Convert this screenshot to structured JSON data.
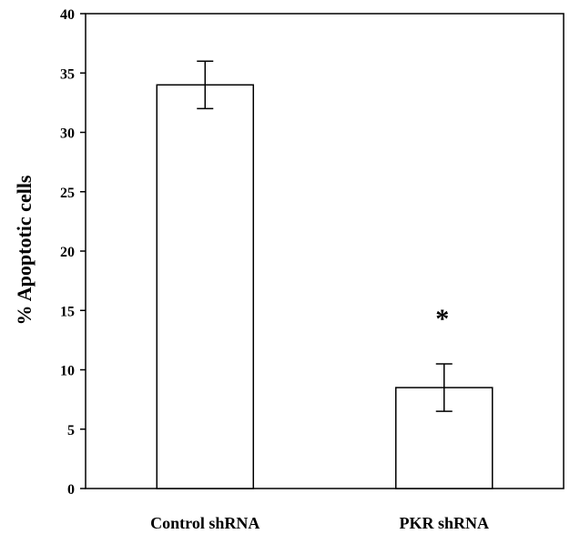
{
  "chart_data": {
    "type": "bar",
    "title": "",
    "xlabel": "",
    "ylabel": "% Apoptotic cells",
    "categories": [
      "Control shRNA",
      "PKR shRNA"
    ],
    "values": [
      34,
      8.5
    ],
    "errors": [
      2,
      2
    ],
    "ylim": [
      0,
      40
    ],
    "yticks": [
      0,
      5,
      10,
      15,
      20,
      25,
      30,
      35,
      40
    ],
    "grid": false,
    "legend": "none",
    "annotations": [
      {
        "category": "PKR shRNA",
        "text": "*"
      }
    ],
    "colors": {
      "bar_fill": "#ffffff",
      "bar_stroke": "#000000",
      "axis": "#000000"
    }
  }
}
